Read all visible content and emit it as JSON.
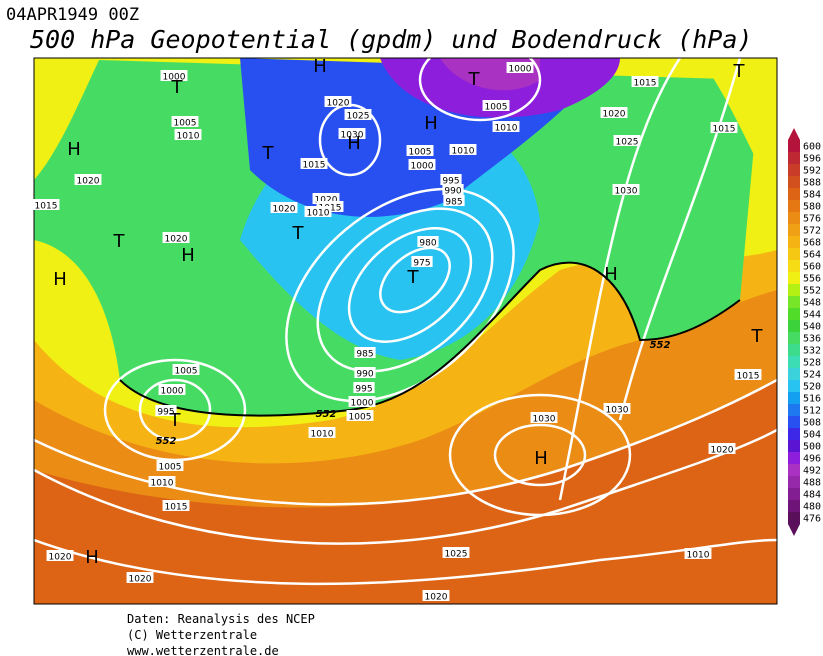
{
  "header": {
    "date": "04APR1949 00Z",
    "title": "500 hPa Geopotential (gpdm) und Bodendruck (hPa)"
  },
  "colorbar": {
    "levels": [
      476,
      480,
      484,
      488,
      492,
      496,
      500,
      504,
      508,
      512,
      516,
      520,
      524,
      528,
      532,
      536,
      540,
      544,
      548,
      552,
      556,
      560,
      564,
      568,
      572,
      576,
      580,
      584,
      588,
      592,
      596,
      600
    ],
    "colors": [
      "#5a0f5a",
      "#6e1478",
      "#821e91",
      "#9628aa",
      "#aa32c3",
      "#8c1edc",
      "#5a14d2",
      "#3c28e6",
      "#2850f0",
      "#1e78f0",
      "#14a0f0",
      "#28c3f0",
      "#3cd2dc",
      "#3cdcb4",
      "#3cdc8c",
      "#46dc64",
      "#3cd23c",
      "#50dc28",
      "#78e628",
      "#b4f014",
      "#f0f014",
      "#f5dc14",
      "#f5c814",
      "#f5b414",
      "#f0a014",
      "#eb8c14",
      "#e67814",
      "#dc6414",
      "#d2501e",
      "#c83c28",
      "#be2832",
      "#b4143c"
    ]
  },
  "map": {
    "pressure_labels": [
      1000,
      1005,
      1010,
      1020,
      1015,
      1020,
      1020,
      1025,
      1030,
      1015,
      1020,
      1020,
      1015,
      1010,
      1000,
      1005,
      1010,
      1010,
      1005,
      1000,
      995,
      990,
      985,
      980,
      975,
      985,
      990,
      995,
      1000,
      1005,
      1010,
      1005,
      1000,
      995,
      1005,
      1010,
      1015,
      1020,
      1020,
      1025,
      1020,
      1030,
      1030,
      1015,
      1020,
      1025,
      1030,
      1015,
      1020,
      1015,
      1010
    ],
    "centers": [
      "T",
      "H",
      "T",
      "H",
      "H",
      "T",
      "H",
      "T",
      "T",
      "H",
      "H",
      "T",
      "T",
      "H",
      "T",
      "H",
      "H",
      "T"
    ],
    "contour_labels": [
      552,
      552,
      552
    ]
  },
  "footer": {
    "lines": [
      "Daten: Reanalysis des NCEP",
      "(C) Wetterzentrale",
      "www.wetterzentrale.de"
    ]
  }
}
